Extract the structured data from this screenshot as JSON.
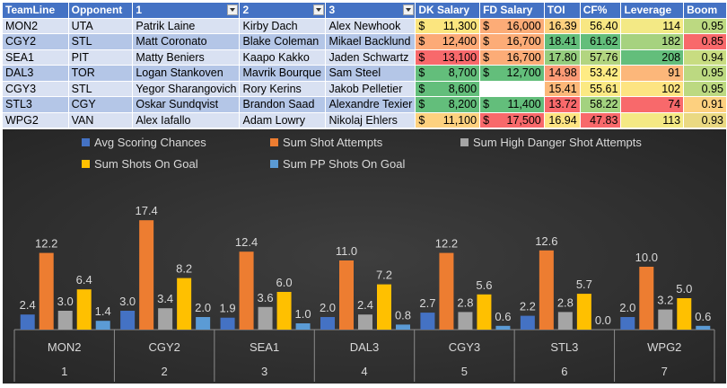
{
  "table": {
    "headers": [
      "TeamLine",
      "Opponent",
      "1",
      "2",
      "3",
      "DK Salary",
      "FD Salary",
      "TOI",
      "CF%",
      "Leverage",
      "Boom"
    ],
    "filter_columns": [
      2,
      3,
      4
    ],
    "rows": [
      {
        "team": "MON2",
        "opp": "UTA",
        "p1": "Patrik Laine",
        "p2": "Kirby Dach",
        "p3": "Alex Newhook",
        "dk": "11,300",
        "fd": "16,000",
        "toi": "16.39",
        "cf": "56.40",
        "lev": "114",
        "boom": "0.95"
      },
      {
        "team": "CGY2",
        "opp": "STL",
        "p1": "Matt Coronato",
        "p2": "Blake Coleman",
        "p3": "Mikael Backlund",
        "dk": "12,400",
        "fd": "16,700",
        "toi": "18.41",
        "cf": "61.62",
        "lev": "182",
        "boom": "0.85"
      },
      {
        "team": "SEA1",
        "opp": "PIT",
        "p1": "Matty Beniers",
        "p2": "Kaapo Kakko",
        "p3": "Jaden Schwartz",
        "dk": "13,100",
        "fd": "16,700",
        "toi": "17.80",
        "cf": "57.76",
        "lev": "208",
        "boom": "0.94"
      },
      {
        "team": "DAL3",
        "opp": "TOR",
        "p1": "Logan Stankoven",
        "p2": "Mavrik Bourque",
        "p3": "Sam Steel",
        "dk": "8,700",
        "fd": "12,700",
        "toi": "14.98",
        "cf": "53.42",
        "lev": "91",
        "boom": "0.95"
      },
      {
        "team": "CGY3",
        "opp": "STL",
        "p1": "Yegor Sharangovich",
        "p2": "Rory Kerins",
        "p3": "Jakob Pelletier",
        "dk": "8,600",
        "fd": "",
        "toi": "15.41",
        "cf": "55.61",
        "lev": "102",
        "boom": "0.95"
      },
      {
        "team": "STL3",
        "opp": "CGY",
        "p1": "Oskar Sundqvist",
        "p2": "Brandon Saad",
        "p3": "Alexandre Texier",
        "dk": "8,200",
        "fd": "11,400",
        "toi": "13.72",
        "cf": "58.22",
        "lev": "74",
        "boom": "0.91"
      },
      {
        "team": "WPG2",
        "opp": "VAN",
        "p1": "Alex Iafallo",
        "p2": "Adam Lowry",
        "p3": "Nikolaj Ehlers",
        "dk": "11,100",
        "fd": "17,500",
        "toi": "16.94",
        "cf": "47.83",
        "lev": "113",
        "boom": "0.93"
      }
    ],
    "cell_colors": [
      {
        "dk": "#fbe57f",
        "fd": "#fcac77",
        "toi": "#fdd17f",
        "cf": "#f8e783",
        "lev": "#f3e985",
        "boom": "#bcd981"
      },
      {
        "dk": "#fcaa77",
        "fd": "#fcac77",
        "toi": "#63be7b",
        "cf": "#63be7b",
        "lev": "#a6d27f",
        "boom": "#f8696b"
      },
      {
        "dk": "#f8696b",
        "fd": "#fcac77",
        "toi": "#95cd7e",
        "cf": "#b2d580",
        "lev": "#63be7b",
        "boom": "#c8dc81"
      },
      {
        "dk": "#63be7b",
        "fd": "#63be7b",
        "toi": "#fb9a75",
        "cf": "#feeb84",
        "lev": "#fcb77a",
        "boom": "#bcd981"
      },
      {
        "dk": "#63be7b",
        "fd": "#ffffff",
        "toi": "#fcb879",
        "cf": "#fbe983",
        "lev": "#fde482",
        "boom": "#bcd981"
      },
      {
        "dk": "#63be7b",
        "fd": "#63be7b",
        "toi": "#f8696b",
        "cf": "#a3d27f",
        "lev": "#f8696b",
        "boom": "#fdd07f"
      },
      {
        "dk": "#fdd17f",
        "fd": "#f8696b",
        "toi": "#fde482",
        "cf": "#f8696b",
        "lev": "#f4e984",
        "boom": "#ead982"
      }
    ],
    "currency": "$"
  },
  "chart_data": {
    "type": "bar",
    "title": "",
    "xlabel": "",
    "ylabel": "",
    "categories": [
      "MON2",
      "CGY2",
      "SEA1",
      "DAL3",
      "CGY3",
      "STL3",
      "WPG2"
    ],
    "category_numbers": [
      "1",
      "2",
      "3",
      "4",
      "5",
      "6",
      "7"
    ],
    "ylim": [
      0,
      18.5
    ],
    "grid": false,
    "legend": "top",
    "series": [
      {
        "name": "Avg Scoring Chances",
        "color": "#4472c4",
        "values": [
          2.4,
          3.0,
          1.9,
          2.0,
          2.7,
          2.2,
          2.0
        ]
      },
      {
        "name": "Sum Shot Attempts",
        "color": "#ed7d31",
        "values": [
          12.2,
          17.4,
          12.4,
          11.0,
          12.2,
          12.6,
          10.0
        ]
      },
      {
        "name": "Sum High Danger Shot Attempts",
        "color": "#a5a5a5",
        "values": [
          3.0,
          3.4,
          3.6,
          2.4,
          2.8,
          2.8,
          3.2
        ]
      },
      {
        "name": "Sum Shots On Goal",
        "color": "#ffc000",
        "values": [
          6.4,
          8.2,
          6.0,
          7.2,
          5.6,
          5.7,
          5.0
        ]
      },
      {
        "name": "Sum PP Shots On Goal",
        "color": "#5b9bd5",
        "values": [
          1.4,
          2.0,
          1.0,
          0.8,
          0.6,
          0.0,
          0.6
        ]
      }
    ]
  }
}
